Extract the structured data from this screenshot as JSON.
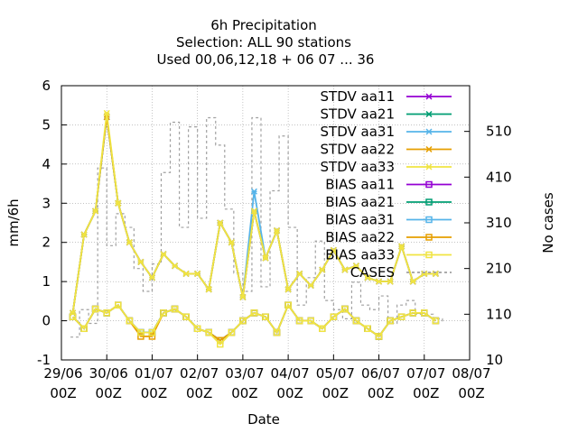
{
  "chart_data": {
    "type": "line",
    "title": [
      "6h Precipitation",
      "Selection: ALL      90 stations",
      "Used  00,06,12,18  + 06 07 ... 36"
    ],
    "xlabel": "Date",
    "ylabel": "mm/6h",
    "y2label": "No cases",
    "ylim": [
      -1,
      6
    ],
    "y2lim": [
      10,
      610
    ],
    "yticks": [
      "-1",
      "0",
      "1",
      "2",
      "3",
      "4",
      "5",
      "6"
    ],
    "y2ticks": [
      "10",
      "110",
      "210",
      "310",
      "410",
      "510"
    ],
    "xlim": [
      0,
      9
    ],
    "xticks": [
      {
        "line1": "29/06",
        "line2": "00Z"
      },
      {
        "line1": "30/06",
        "line2": "00Z"
      },
      {
        "line1": "01/07",
        "line2": "00Z"
      },
      {
        "line1": "02/07",
        "line2": "00Z"
      },
      {
        "line1": "03/07",
        "line2": "00Z"
      },
      {
        "line1": "04/07",
        "line2": "00Z"
      },
      {
        "line1": "05/07",
        "line2": "00Z"
      },
      {
        "line1": "06/07",
        "line2": "00Z"
      },
      {
        "line1": "07/07",
        "line2": "00Z"
      },
      {
        "line1": "08/07",
        "line2": "00Z"
      }
    ],
    "grid": true,
    "legend_position": "top-right",
    "x_days": [
      0.25,
      0.5,
      0.75,
      1.0,
      1.25,
      1.5,
      1.75,
      2.0,
      2.25,
      2.5,
      2.75,
      3.0,
      3.25,
      3.5,
      3.75,
      4.0,
      4.25,
      4.5,
      4.75,
      5.0,
      5.25,
      5.5,
      5.75,
      6.0,
      6.25,
      6.5,
      6.75,
      7.0,
      7.25,
      7.5,
      7.75,
      8.0,
      8.25
    ],
    "series": [
      {
        "name": "STDV aa11",
        "color": "#9400d3",
        "marker": "x",
        "values": [
          0.2,
          2.2,
          2.8,
          5.2,
          3.0,
          2.0,
          1.5,
          1.1,
          1.7,
          1.4,
          1.2,
          1.2,
          0.8,
          2.5,
          2.0,
          0.6,
          2.8,
          1.6,
          2.3,
          0.8,
          1.2,
          0.9,
          1.3,
          1.8,
          1.3,
          1.4,
          1.1,
          1.0,
          1.0,
          1.9,
          1.0,
          1.2,
          1.2
        ]
      },
      {
        "name": "STDV aa21",
        "color": "#009e73",
        "marker": "x",
        "values": [
          0.2,
          2.2,
          2.8,
          5.2,
          3.0,
          2.0,
          1.5,
          1.1,
          1.7,
          1.4,
          1.2,
          1.2,
          0.8,
          2.5,
          2.0,
          0.6,
          2.8,
          1.6,
          2.3,
          0.8,
          1.2,
          0.9,
          1.3,
          1.8,
          1.3,
          1.4,
          1.1,
          1.0,
          1.0,
          1.9,
          1.0,
          1.2,
          1.2
        ]
      },
      {
        "name": "STDV aa31",
        "color": "#56b4e9",
        "marker": "x",
        "values": [
          0.2,
          2.2,
          2.8,
          5.2,
          3.0,
          2.0,
          1.5,
          1.1,
          1.7,
          1.4,
          1.2,
          1.2,
          0.8,
          2.5,
          2.0,
          0.6,
          3.3,
          1.6,
          2.3,
          0.8,
          1.2,
          0.9,
          1.3,
          1.8,
          1.3,
          1.4,
          1.1,
          1.0,
          1.0,
          1.9,
          1.0,
          1.2,
          1.2
        ]
      },
      {
        "name": "STDV aa22",
        "color": "#e69f00",
        "marker": "x",
        "values": [
          0.2,
          2.2,
          2.8,
          5.2,
          3.0,
          2.0,
          1.5,
          1.1,
          1.7,
          1.4,
          1.2,
          1.2,
          0.8,
          2.5,
          2.0,
          0.6,
          2.8,
          1.6,
          2.3,
          0.8,
          1.2,
          0.9,
          1.3,
          1.8,
          1.3,
          1.4,
          1.1,
          1.0,
          1.0,
          1.9,
          1.0,
          1.2,
          1.2
        ]
      },
      {
        "name": "STDV aa33",
        "color": "#f0e442",
        "marker": "x",
        "values": [
          0.2,
          2.2,
          2.8,
          5.3,
          3.0,
          2.0,
          1.5,
          1.1,
          1.7,
          1.4,
          1.2,
          1.2,
          0.8,
          2.5,
          2.0,
          0.6,
          2.8,
          1.6,
          2.3,
          0.8,
          1.2,
          0.9,
          1.3,
          1.8,
          1.3,
          1.4,
          1.1,
          1.0,
          1.0,
          1.9,
          1.0,
          1.2,
          1.2
        ]
      },
      {
        "name": "BIAS aa11",
        "color": "#9400d3",
        "marker": "square",
        "values": [
          0.1,
          -0.2,
          0.3,
          0.2,
          0.4,
          0.0,
          -0.3,
          -0.3,
          0.2,
          0.3,
          0.1,
          -0.2,
          -0.3,
          -0.5,
          -0.3,
          0.0,
          0.2,
          0.1,
          -0.3,
          0.4,
          0.0,
          0.0,
          -0.2,
          0.1,
          0.3,
          0.0,
          -0.2,
          -0.4,
          0.0,
          0.1,
          0.2,
          0.2,
          0.0
        ]
      },
      {
        "name": "BIAS aa21",
        "color": "#009e73",
        "marker": "square",
        "values": [
          0.1,
          -0.2,
          0.3,
          0.2,
          0.4,
          0.0,
          -0.3,
          -0.3,
          0.2,
          0.3,
          0.1,
          -0.2,
          -0.3,
          -0.5,
          -0.3,
          0.0,
          0.2,
          0.1,
          -0.3,
          0.4,
          0.0,
          0.0,
          -0.2,
          0.1,
          0.3,
          0.0,
          -0.2,
          -0.4,
          0.0,
          0.1,
          0.2,
          0.2,
          0.0
        ]
      },
      {
        "name": "BIAS aa31",
        "color": "#56b4e9",
        "marker": "square",
        "values": [
          0.1,
          -0.2,
          0.3,
          0.2,
          0.4,
          0.0,
          -0.3,
          -0.3,
          0.2,
          0.3,
          0.1,
          -0.2,
          -0.3,
          -0.5,
          -0.3,
          0.0,
          0.2,
          0.1,
          -0.3,
          0.4,
          0.0,
          0.0,
          -0.2,
          0.1,
          0.3,
          0.0,
          -0.2,
          -0.4,
          0.0,
          0.1,
          0.2,
          0.2,
          0.0
        ]
      },
      {
        "name": "BIAS aa22",
        "color": "#e69f00",
        "marker": "square",
        "values": [
          0.1,
          -0.2,
          0.3,
          0.2,
          0.4,
          0.0,
          -0.4,
          -0.4,
          0.2,
          0.3,
          0.1,
          -0.2,
          -0.3,
          -0.5,
          -0.3,
          0.0,
          0.2,
          0.1,
          -0.3,
          0.4,
          0.0,
          0.0,
          -0.2,
          0.1,
          0.3,
          0.0,
          -0.2,
          -0.4,
          0.0,
          0.1,
          0.2,
          0.2,
          0.0
        ]
      },
      {
        "name": "BIAS aa33",
        "color": "#f0e442",
        "marker": "square",
        "values": [
          0.1,
          -0.2,
          0.3,
          0.2,
          0.4,
          0.0,
          -0.3,
          -0.3,
          0.2,
          0.3,
          0.1,
          -0.2,
          -0.3,
          -0.6,
          -0.3,
          0.0,
          0.2,
          0.1,
          -0.3,
          0.4,
          0.0,
          0.0,
          -0.2,
          0.1,
          0.3,
          0.0,
          -0.2,
          -0.4,
          0.0,
          0.1,
          0.2,
          0.2,
          0.0
        ]
      }
    ],
    "cases": {
      "name": "CASES",
      "color": "#a0a0a0",
      "x_days": [
        0.2,
        0.4,
        0.6,
        0.8,
        1.0,
        1.2,
        1.4,
        1.6,
        1.8,
        2.0,
        2.2,
        2.4,
        2.6,
        2.8,
        3.0,
        3.2,
        3.4,
        3.6,
        3.8,
        4.0,
        4.2,
        4.4,
        4.6,
        4.8,
        5.0,
        5.2,
        5.4,
        5.6,
        5.8,
        6.0,
        6.2,
        6.4,
        6.6,
        6.8,
        7.0,
        7.2,
        7.4,
        7.6,
        7.8,
        8.0,
        8.2,
        8.4
      ],
      "values": [
        60,
        120,
        90,
        430,
        260,
        330,
        300,
        210,
        160,
        220,
        420,
        530,
        300,
        520,
        320,
        540,
        480,
        340,
        200,
        160,
        540,
        170,
        380,
        500,
        300,
        130,
        190,
        270,
        140,
        120,
        100,
        180,
        130,
        120,
        150,
        90,
        130,
        140,
        110,
        110,
        100,
        90
      ]
    }
  }
}
